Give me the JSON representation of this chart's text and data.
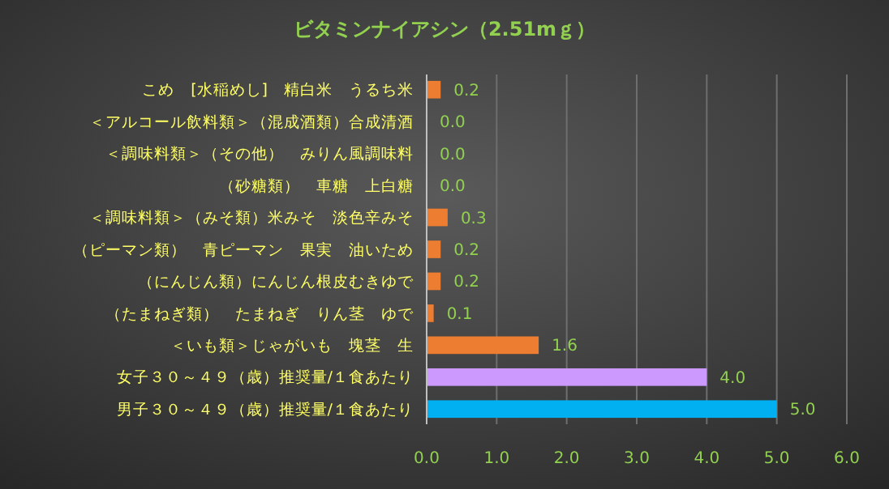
{
  "chart_data": {
    "type": "bar",
    "orientation": "horizontal",
    "title": "ビタミンナイアシン（2.51mｇ）",
    "categories": [
      "こめ　[水稲めし]　精白米　うるち米",
      "＜アルコール飲料類＞（混成酒類）合成清酒",
      "＜調味料類＞（その他）　みりん風調味料",
      "（砂糖類）　車糖　上白糖",
      "＜調味料類＞（みそ類）米みそ　淡色辛みそ",
      "（ピーマン類）　青ピーマン　果実　油いため",
      "（にんじん類）にんじん根皮むきゆで",
      "（たまねぎ類）　たまねぎ　りん茎　ゆで",
      "＜いも類＞じゃがいも　塊茎　生",
      "女子３０～４９（歳）推奨量/１食あたり",
      "男子３０～４９（歳）推奨量/１食あたり"
    ],
    "values": [
      0.2,
      0.0,
      0.0,
      0.0,
      0.3,
      0.2,
      0.2,
      0.1,
      1.6,
      4.0,
      5.0
    ],
    "value_labels": [
      "0.2",
      "0.0",
      "0.0",
      "0.0",
      "0.3",
      "0.2",
      "0.2",
      "0.1",
      "1.6",
      "4.0",
      "5.0"
    ],
    "colors": [
      "#ed7d31",
      "#ed7d31",
      "#ed7d31",
      "#ed7d31",
      "#ed7d31",
      "#ed7d31",
      "#ed7d31",
      "#ed7d31",
      "#ed7d31",
      "#cc99ff",
      "#00b0f0"
    ],
    "xlim": [
      0,
      6
    ],
    "xticks": [
      {
        "value": 0,
        "label": "0.0"
      },
      {
        "value": 1,
        "label": "1.0"
      },
      {
        "value": 2,
        "label": "2.0"
      },
      {
        "value": 3,
        "label": "3.0"
      },
      {
        "value": 4,
        "label": "4.0"
      },
      {
        "value": 5,
        "label": "5.0"
      },
      {
        "value": 6,
        "label": "6.0"
      }
    ],
    "grid": "x"
  }
}
